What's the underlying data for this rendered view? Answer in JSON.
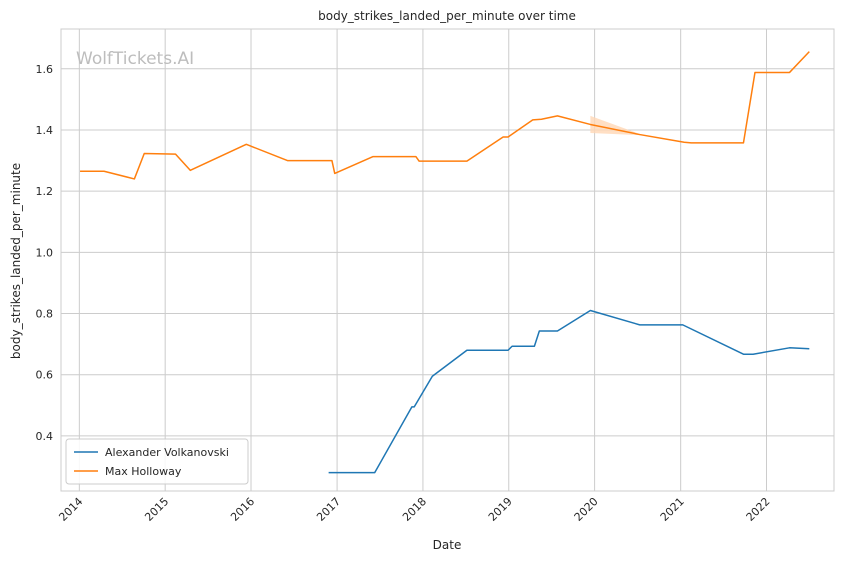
{
  "chart_data": {
    "type": "line",
    "title": "body_strikes_landed_per_minute over time",
    "xlabel": "Date",
    "ylabel": "body_strikes_landed_per_minute",
    "watermark": "WolfTickets.AI",
    "x_ticks": [
      "2014",
      "2015",
      "2016",
      "2017",
      "2018",
      "2019",
      "2020",
      "2021",
      "2022"
    ],
    "y_ticks": [
      "0.4",
      "0.6",
      "0.8",
      "1.0",
      "1.2",
      "1.4",
      "1.6"
    ],
    "x_range": [
      "2013-10-15",
      "2022-10-15"
    ],
    "y_range": [
      0.22,
      1.73
    ],
    "grid": true,
    "legend_position": "lower-left",
    "series": [
      {
        "name": "Alexander Volkanovski",
        "color": "#1f77b4",
        "points": [
          [
            "2016-11-26",
            0.28
          ],
          [
            "2017-06-10",
            0.28
          ],
          [
            "2017-11-15",
            0.495
          ],
          [
            "2017-11-25",
            0.495
          ],
          [
            "2018-02-10",
            0.595
          ],
          [
            "2018-07-07",
            0.68
          ],
          [
            "2018-12-29",
            0.68
          ],
          [
            "2019-01-15",
            0.693
          ],
          [
            "2019-04-20",
            0.693
          ],
          [
            "2019-05-11",
            0.743
          ],
          [
            "2019-07-27",
            0.743
          ],
          [
            "2019-12-14",
            0.81
          ],
          [
            "2020-07-11",
            0.763
          ],
          [
            "2021-01-10",
            0.763
          ],
          [
            "2021-09-25",
            0.667
          ],
          [
            "2021-11-05",
            0.667
          ],
          [
            "2022-04-09",
            0.688
          ],
          [
            "2022-07-02",
            0.685
          ]
        ]
      },
      {
        "name": "Max Holloway",
        "color": "#ff7f0e",
        "band_color": "#ffd7b5",
        "points": [
          [
            "2014-01-04",
            1.265
          ],
          [
            "2014-04-16",
            1.265
          ],
          [
            "2014-08-23",
            1.24
          ],
          [
            "2014-10-04",
            1.323
          ],
          [
            "2015-02-14",
            1.321
          ],
          [
            "2015-04-18",
            1.268
          ],
          [
            "2015-12-12",
            1.353
          ],
          [
            "2016-06-04",
            1.3
          ],
          [
            "2016-12-10",
            1.3
          ],
          [
            "2016-12-22",
            1.258
          ],
          [
            "2017-06-03",
            1.313
          ],
          [
            "2017-12-02",
            1.313
          ],
          [
            "2017-12-16",
            1.298
          ],
          [
            "2018-07-07",
            1.298
          ],
          [
            "2018-12-08",
            1.377
          ],
          [
            "2018-12-29",
            1.377
          ],
          [
            "2019-04-13",
            1.433
          ],
          [
            "2019-05-20",
            1.435
          ],
          [
            "2019-07-27",
            1.446
          ],
          [
            "2019-12-14",
            1.418
          ],
          [
            "2020-07-11",
            1.385
          ],
          [
            "2021-01-16",
            1.36
          ],
          [
            "2021-02-15",
            1.358
          ],
          [
            "2021-09-25",
            1.358
          ],
          [
            "2021-11-13",
            1.588
          ],
          [
            "2022-04-09",
            1.588
          ],
          [
            "2022-07-02",
            1.656
          ]
        ],
        "band": [
          [
            "2019-12-14",
            1.39,
            1.446
          ],
          [
            "2020-07-11",
            1.383,
            1.387
          ]
        ]
      }
    ]
  }
}
